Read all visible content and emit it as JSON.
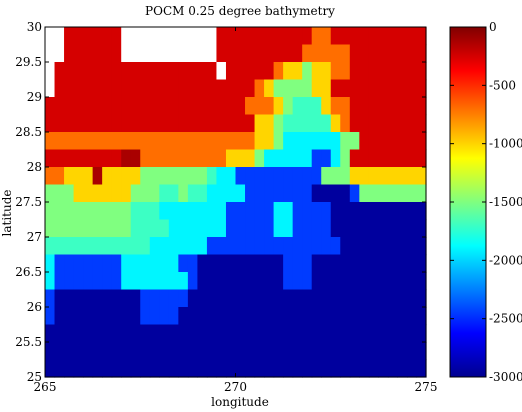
{
  "chart_data": {
    "type": "heatmap",
    "title": "POCM 0.25 degree bathymetry",
    "xlabel": "longitude",
    "ylabel": "latitude",
    "xlim": [
      265,
      275
    ],
    "ylim": [
      25,
      30
    ],
    "x_ticks": [
      "265",
      "270",
      "275"
    ],
    "y_ticks": [
      "25",
      "25.5",
      "26",
      "26.5",
      "27",
      "27.5",
      "28",
      "28.5",
      "29",
      "29.5",
      "30"
    ],
    "colorbar": {
      "range": [
        -3000,
        0
      ],
      "ticks": [
        "0",
        "-500",
        "-1000",
        "-1500",
        "-2000",
        "-2500",
        "-3000"
      ],
      "colormap": "jet"
    },
    "grid": false,
    "cell_size_deg": 0.25,
    "x_start": 265,
    "y_start": 25,
    "missing_value": "land (white)",
    "rows_north_to_south": [
      [
        null,
        null,
        null,
        null,
        null,
        null,
        null,
        null,
        null,
        null,
        null,
        null,
        null,
        null,
        null,
        null,
        null,
        null,
        null,
        null,
        null,
        null,
        null,
        null,
        null,
        null,
        null,
        null,
        null,
        null,
        null,
        null,
        null,
        null,
        null,
        null,
        null,
        null,
        null,
        null
      ],
      [
        null,
        null,
        null,
        null,
        null,
        null,
        null,
        null,
        null,
        null,
        null,
        null,
        null,
        null,
        null,
        null,
        null,
        null,
        null,
        null,
        null,
        null,
        null,
        null,
        null,
        null,
        null,
        null,
        null,
        null,
        null,
        null,
        null,
        null,
        null,
        null,
        null,
        null,
        null,
        null
      ],
      [
        null,
        null,
        null,
        null,
        null,
        null,
        null,
        null,
        null,
        null,
        null,
        null,
        null,
        null,
        null,
        null,
        null,
        null,
        null,
        null,
        null,
        null,
        null,
        null,
        null,
        null,
        null,
        null,
        null,
        null,
        null,
        null,
        null,
        null,
        null,
        null,
        null,
        null,
        null,
        null
      ],
      [
        null,
        null,
        null,
        null,
        null,
        null,
        null,
        null,
        null,
        null,
        null,
        null,
        null,
        null,
        null,
        null,
        null,
        null,
        null,
        null,
        null,
        null,
        null,
        null,
        null,
        null,
        null,
        null,
        null,
        null,
        null,
        null,
        null,
        null,
        null,
        null,
        null,
        null,
        null,
        null
      ],
      [
        null,
        null,
        null,
        null,
        null,
        null,
        null,
        null,
        null,
        null,
        null,
        null,
        null,
        null,
        null,
        null,
        null,
        null,
        null,
        null,
        null,
        null,
        null,
        null,
        null,
        null,
        null,
        null,
        null,
        null,
        null,
        null,
        null,
        null,
        null,
        null,
        null,
        null,
        null,
        null
      ],
      [
        null,
        null,
        null,
        null,
        null,
        null,
        null,
        null,
        null,
        null,
        null,
        null,
        null,
        null,
        null,
        null,
        null,
        null,
        null,
        null,
        null,
        null,
        null,
        null,
        null,
        null,
        null,
        null,
        null,
        null,
        null,
        null,
        null,
        null,
        null,
        null,
        null,
        null,
        null,
        null
      ],
      [
        null,
        null,
        null,
        null,
        null,
        null,
        null,
        null,
        null,
        null,
        null,
        null,
        null,
        null,
        null,
        null,
        null,
        null,
        null,
        null,
        null,
        null,
        null,
        null,
        null,
        null,
        null,
        null,
        null,
        null,
        null,
        null,
        null,
        null,
        null,
        null,
        null,
        null,
        null,
        null
      ],
      [
        null,
        null,
        null,
        null,
        null,
        null,
        null,
        null,
        null,
        null,
        null,
        null,
        null,
        null,
        null,
        null,
        null,
        null,
        null,
        null,
        null,
        null,
        null,
        null,
        null,
        null,
        null,
        null,
        null,
        null,
        null,
        null,
        null,
        null,
        null,
        null,
        null,
        null,
        null,
        null
      ],
      [
        null,
        null,
        null,
        null,
        null,
        null,
        null,
        null,
        null,
        null,
        null,
        null,
        null,
        null,
        null,
        null,
        null,
        null,
        null,
        null,
        null,
        null,
        null,
        null,
        null,
        null,
        null,
        null,
        null,
        null,
        null,
        null,
        null,
        null,
        null,
        null,
        null,
        null,
        null,
        null
      ],
      [
        null,
        null,
        null,
        null,
        null,
        null,
        null,
        null,
        null,
        null,
        null,
        null,
        null,
        null,
        null,
        null,
        null,
        null,
        null,
        null,
        null,
        null,
        null,
        null,
        null,
        null,
        null,
        null,
        null,
        null,
        null,
        null,
        null,
        null,
        null,
        null,
        null,
        null,
        null,
        null
      ],
      [
        null,
        null,
        null,
        null,
        null,
        null,
        null,
        null,
        null,
        null,
        null,
        null,
        null,
        null,
        null,
        null,
        null,
        null,
        null,
        null,
        null,
        null,
        null,
        null,
        null,
        null,
        null,
        null,
        null,
        null,
        null,
        null,
        null,
        null,
        null,
        null,
        null,
        null,
        null,
        null
      ],
      [
        null,
        null,
        null,
        null,
        null,
        null,
        null,
        null,
        null,
        null,
        null,
        null,
        null,
        null,
        null,
        null,
        null,
        null,
        null,
        null,
        null,
        null,
        null,
        null,
        null,
        null,
        null,
        null,
        null,
        null,
        null,
        null,
        null,
        null,
        null,
        null,
        null,
        null,
        null,
        null
      ],
      [
        null,
        null,
        null,
        null,
        null,
        null,
        null,
        null,
        null,
        null,
        null,
        null,
        null,
        null,
        null,
        null,
        null,
        null,
        null,
        null,
        null,
        null,
        null,
        null,
        null,
        null,
        null,
        null,
        null,
        null,
        null,
        null,
        null,
        null,
        null,
        null,
        null,
        null,
        null,
        null
      ],
      [
        null,
        null,
        null,
        null,
        null,
        null,
        null,
        null,
        null,
        null,
        null,
        null,
        null,
        null,
        null,
        null,
        null,
        null,
        null,
        null,
        null,
        null,
        null,
        null,
        null,
        null,
        null,
        null,
        null,
        null,
        null,
        null,
        null,
        null,
        null,
        null,
        null,
        null,
        null,
        null
      ],
      [
        null,
        null,
        null,
        null,
        null,
        null,
        null,
        null,
        null,
        null,
        null,
        null,
        null,
        null,
        null,
        null,
        null,
        null,
        null,
        null,
        null,
        null,
        null,
        null,
        null,
        null,
        null,
        null,
        null,
        null,
        null,
        null,
        null,
        null,
        null,
        null,
        null,
        null,
        null,
        null
      ],
      [
        null,
        null,
        null,
        null,
        null,
        null,
        null,
        null,
        null,
        null,
        null,
        null,
        null,
        null,
        null,
        null,
        null,
        null,
        null,
        null,
        null,
        null,
        null,
        null,
        null,
        null,
        null,
        null,
        null,
        null,
        null,
        null,
        null,
        null,
        null,
        null,
        null,
        null,
        null,
        null
      ],
      [
        null,
        null,
        null,
        null,
        null,
        null,
        null,
        null,
        null,
        null,
        null,
        null,
        null,
        null,
        null,
        null,
        null,
        null,
        null,
        null,
        null,
        null,
        null,
        null,
        null,
        null,
        null,
        null,
        null,
        null,
        null,
        null,
        null,
        null,
        null,
        null,
        null,
        null,
        null,
        null
      ],
      [
        null,
        null,
        null,
        null,
        null,
        null,
        null,
        null,
        null,
        null,
        null,
        null,
        null,
        null,
        null,
        null,
        null,
        null,
        null,
        null,
        null,
        null,
        null,
        null,
        null,
        null,
        null,
        null,
        null,
        null,
        null,
        null,
        null,
        null,
        null,
        null,
        null,
        null,
        null,
        null
      ],
      [
        null,
        null,
        null,
        null,
        null,
        null,
        null,
        null,
        null,
        null,
        null,
        null,
        null,
        null,
        null,
        null,
        null,
        null,
        null,
        null,
        null,
        null,
        null,
        null,
        null,
        null,
        null,
        null,
        null,
        null,
        null,
        null,
        null,
        null,
        null,
        null,
        null,
        null,
        null,
        null
      ],
      [
        null,
        null,
        null,
        null,
        null,
        null,
        null,
        null,
        null,
        null,
        null,
        null,
        null,
        null,
        null,
        null,
        null,
        null,
        null,
        null,
        null,
        null,
        null,
        null,
        null,
        null,
        null,
        null,
        null,
        null,
        null,
        null,
        null,
        null,
        null,
        null,
        null,
        null,
        null,
        null
      ]
    ]
  }
}
